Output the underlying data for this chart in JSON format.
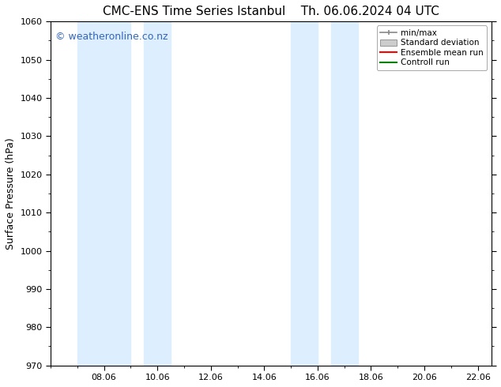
{
  "title_left": "CMC-ENS Time Series Istanbul",
  "title_right": "Th. 06.06.2024 04 UTC",
  "ylabel": "Surface Pressure (hPa)",
  "ylim": [
    970,
    1060
  ],
  "yticks": [
    970,
    980,
    990,
    1000,
    1010,
    1020,
    1030,
    1040,
    1050,
    1060
  ],
  "xlim_start": 6.0,
  "xlim_end": 22.5,
  "xtick_labels": [
    "08.06",
    "10.06",
    "12.06",
    "14.06",
    "16.06",
    "18.06",
    "20.06",
    "22.06"
  ],
  "xtick_positions": [
    8.0,
    10.0,
    12.0,
    14.0,
    16.0,
    18.0,
    20.0,
    22.0
  ],
  "shaded_bands": [
    {
      "x_start": 7.0,
      "x_end": 9.0,
      "color": "#ddeeff"
    },
    {
      "x_start": 9.5,
      "x_end": 10.5,
      "color": "#ddeeff"
    },
    {
      "x_start": 15.0,
      "x_end": 16.0,
      "color": "#ddeeff"
    },
    {
      "x_start": 16.5,
      "x_end": 17.5,
      "color": "#ddeeff"
    }
  ],
  "watermark_text": "© weatheronline.co.nz",
  "watermark_color": "#3366bb",
  "watermark_fontsize": 9,
  "background_color": "#ffffff",
  "plot_bg_color": "#ffffff",
  "grid_color": "#cccccc",
  "legend_entries": [
    {
      "label": "min/max",
      "color": "#aaaaaa",
      "style": "minmax"
    },
    {
      "label": "Standard deviation",
      "color": "#cccccc",
      "style": "stddev"
    },
    {
      "label": "Ensemble mean run",
      "color": "#ff0000",
      "style": "line"
    },
    {
      "label": "Controll run",
      "color": "#008000",
      "style": "line"
    }
  ],
  "title_fontsize": 11,
  "axis_fontsize": 9,
  "tick_fontsize": 8,
  "legend_fontsize": 7.5
}
